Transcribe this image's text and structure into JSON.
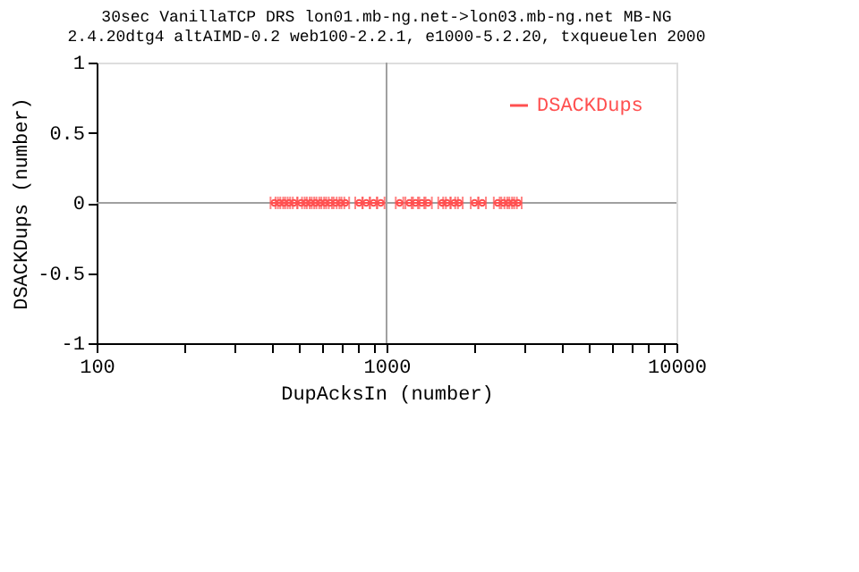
{
  "chart_data": {
    "type": "scatter",
    "title": [
      "30sec VanillaTCP DRS lon01.mb-ng.net->lon03.mb-ng.net MB-NG",
      "2.4.20dtg4 altAIMD-0.2 web100-2.2.1, e1000-5.2.20, txqueuelen 2000"
    ],
    "xlabel": "DupAcksIn (number)",
    "ylabel": "DSACKDups (number)",
    "log": "x",
    "xlim": [
      100,
      10000
    ],
    "ylim": [
      -1,
      1
    ],
    "xticks": [
      100,
      {
        "value": 200,
        "label": null
      },
      {
        "value": 300,
        "label": null
      },
      {
        "value": 400,
        "label": null
      },
      {
        "value": 500,
        "label": null
      },
      {
        "value": 600,
        "label": null
      },
      {
        "value": 700,
        "label": null
      },
      {
        "value": 800,
        "label": null
      },
      {
        "value": 900,
        "label": null
      },
      1000,
      {
        "value": 2000,
        "label": null
      },
      {
        "value": 3000,
        "label": null
      },
      {
        "value": 4000,
        "label": null
      },
      {
        "value": 5000,
        "label": null
      },
      {
        "value": 6000,
        "label": null
      },
      {
        "value": 7000,
        "label": null
      },
      {
        "value": 8000,
        "label": null
      },
      {
        "value": 9000,
        "label": null
      },
      10000
    ],
    "yticks": [
      -1,
      -0.5,
      0,
      0.5,
      1
    ],
    "ref_lines": [
      {
        "axis": "y",
        "value": 0,
        "color": "#a0a0a0"
      },
      {
        "axis": "x",
        "value": 1000,
        "color": "#a0a0a0"
      }
    ],
    "legend": "top right",
    "marker": "circle",
    "series": [
      {
        "name": "DSACKDups",
        "color": "#ff5050",
        "x": [
          410,
          427,
          443,
          461,
          479,
          507,
          527,
          547,
          569,
          591,
          614,
          638,
          668,
          694,
          721,
          804,
          851,
          902,
          955,
          1109,
          1198,
          1259,
          1323,
          1391,
          1555,
          1616,
          1712,
          1778,
          2012,
          2138,
          2416,
          2532,
          2630,
          2733,
          2840
        ],
        "values": [
          0,
          0,
          0,
          0,
          0,
          0,
          0,
          0,
          0,
          0,
          0,
          0,
          0,
          0,
          0,
          0,
          0,
          0,
          0,
          0,
          0,
          0,
          0,
          0,
          0,
          0,
          0,
          0,
          0,
          0,
          0,
          0,
          0,
          0,
          0
        ],
        "xerrors": [
          12,
          13,
          13,
          14,
          14,
          15,
          16,
          16,
          17,
          18,
          18,
          19,
          20,
          21,
          22,
          24,
          26,
          27,
          29,
          33,
          36,
          38,
          40,
          42,
          47,
          48,
          51,
          53,
          60,
          64,
          72,
          76,
          79,
          82,
          85
        ]
      }
    ]
  }
}
